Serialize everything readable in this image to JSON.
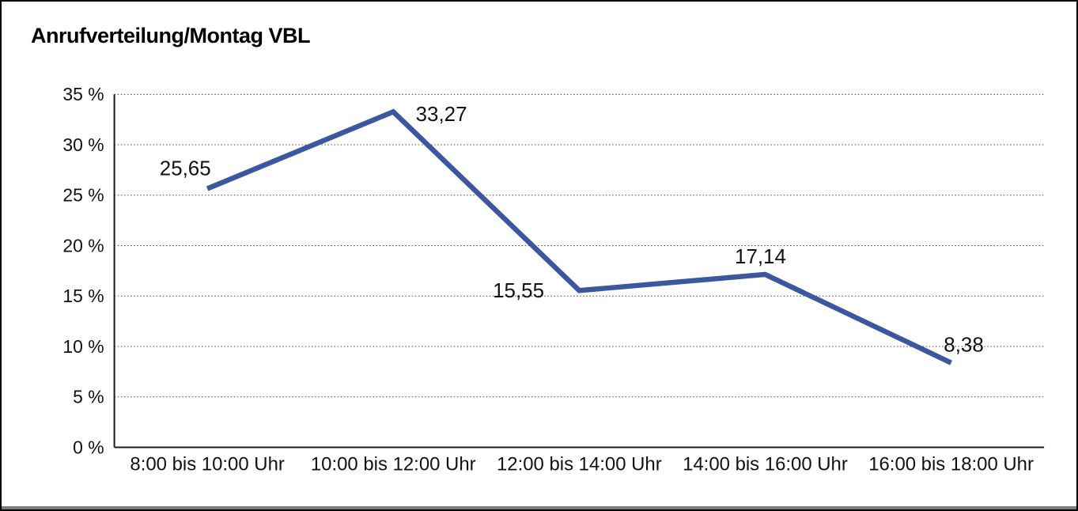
{
  "chart_data": {
    "type": "line",
    "title": "Anrufverteilung/Montag VBL",
    "categories": [
      "8:00 bis 10:00 Uhr",
      "10:00 bis 12:00 Uhr",
      "12:00 bis 14:00 Uhr",
      "14:00 bis 16:00 Uhr",
      "16:00 bis 18:00 Uhr"
    ],
    "values": [
      25.65,
      33.27,
      15.55,
      17.14,
      8.38
    ],
    "value_labels": [
      "25,65",
      "33,27",
      "15,55",
      "17,14",
      "8,38"
    ],
    "xlabel": "",
    "ylabel": "",
    "ylim": [
      0,
      35
    ],
    "y_ticks": [
      {
        "value": 0,
        "label": "0 %"
      },
      {
        "value": 5,
        "label": "5 %"
      },
      {
        "value": 10,
        "label": "10 %"
      },
      {
        "value": 15,
        "label": "15 %"
      },
      {
        "value": 20,
        "label": "20 %"
      },
      {
        "value": 25,
        "label": "25 %"
      },
      {
        "value": 30,
        "label": "30 %"
      },
      {
        "value": 35,
        "label": "35 %"
      }
    ],
    "grid": "horizontal-dotted",
    "legend": "none",
    "line_color": "#3A57A0",
    "axis_color": "#1a1a1a",
    "text_color": "#111111"
  }
}
